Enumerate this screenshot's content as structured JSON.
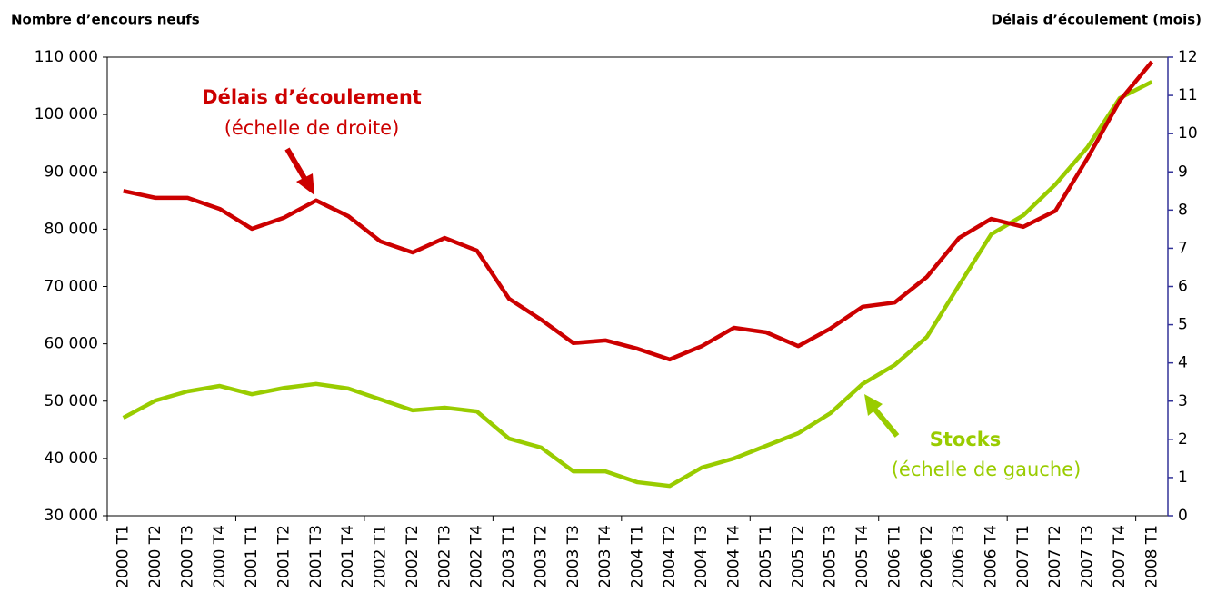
{
  "chart_data": {
    "type": "line",
    "y_axis_title": "Nombre d’encours neufs",
    "y2_axis_title": "Délais d’écoulement (mois)",
    "categories": [
      "2000 T1",
      "2000 T2",
      "2000 T3",
      "2000 T4",
      "2001 T1",
      "2001 T2",
      "2001 T3",
      "2001 T4",
      "2002 T1",
      "2002 T2",
      "2002 T3",
      "2002 T4",
      "2003 T1",
      "2003 T2",
      "2003 T3",
      "2003 T4",
      "2004 T1",
      "2004 T2",
      "2004 T3",
      "2004 T4",
      "2005 T1",
      "2005 T2",
      "2005 T3",
      "2005 T4",
      "2006 T1",
      "2006 T2",
      "2006 T3",
      "2006 T4",
      "2007 T1",
      "2007 T2",
      "2007 T3",
      "2007 T4",
      "2008 T1"
    ],
    "series": [
      {
        "name": "Stocks",
        "color": "#99cc00",
        "axis": "y",
        "values": [
          47100,
          50100,
          51700,
          52650,
          51200,
          52300,
          53000,
          52200,
          50300,
          48400,
          48850,
          48200,
          43450,
          41900,
          37750,
          37750,
          35850,
          35200,
          38400,
          40000,
          42200,
          44400,
          47900,
          53000,
          56300,
          61200,
          70200,
          79100,
          82400,
          87800,
          94300,
          102850,
          105700
        ]
      },
      {
        "name": "Délais d’écoulement",
        "color": "#cc0000",
        "axis": "y2",
        "values": [
          8.5,
          8.32,
          8.32,
          8.03,
          7.51,
          7.8,
          8.25,
          7.84,
          7.18,
          6.89,
          7.27,
          6.94,
          5.68,
          5.13,
          4.52,
          4.59,
          4.37,
          4.09,
          4.44,
          4.92,
          4.8,
          4.44,
          4.9,
          5.47,
          5.58,
          6.25,
          7.27,
          7.77,
          7.56,
          7.98,
          9.36,
          10.86,
          11.88
        ]
      }
    ],
    "annotations": [
      {
        "title": "Délais d’écoulement",
        "text": "(échelle de droite)"
      },
      {
        "title": "Stocks",
        "text": "(échelle de gauche)"
      }
    ],
    "ylim": [
      30000,
      110000
    ],
    "yticks": [
      {
        "value": 30000,
        "label": "30 000"
      },
      {
        "value": 40000,
        "label": "40 000"
      },
      {
        "value": 50000,
        "label": "50 000"
      },
      {
        "value": 60000,
        "label": "60 000"
      },
      {
        "value": 70000,
        "label": "70 000"
      },
      {
        "value": 80000,
        "label": "80 000"
      },
      {
        "value": 90000,
        "label": "90 000"
      },
      {
        "value": 100000,
        "label": "100 000"
      },
      {
        "value": 110000,
        "label": "110 000"
      }
    ],
    "y2lim": [
      0,
      12
    ],
    "y2ticks": [
      0,
      1,
      2,
      3,
      4,
      5,
      6,
      7,
      8,
      9,
      10,
      11,
      12
    ],
    "y2_axis_color": "#333399",
    "grid": false
  }
}
